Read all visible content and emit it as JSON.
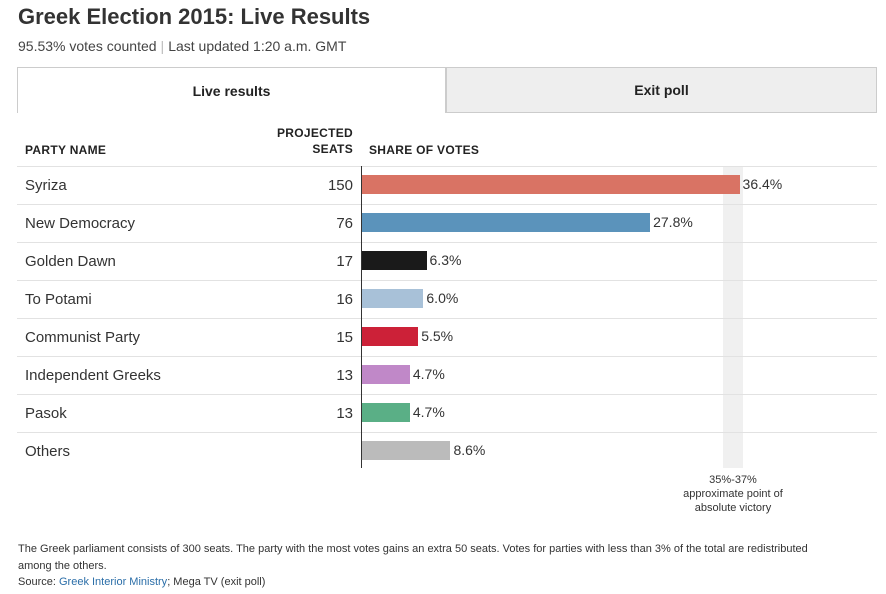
{
  "header": {
    "title": "Greek Election 2015: Live Results",
    "votes_counted": "95.53% votes counted",
    "separator": "|",
    "last_updated": "Last updated 1:20 a.m. GMT"
  },
  "tabs": [
    {
      "label": "Live results",
      "active": true
    },
    {
      "label": "Exit poll",
      "active": false
    }
  ],
  "table": {
    "col_party": "PARTY NAME",
    "col_seats_line1": "PROJECTED",
    "col_seats_line2": "SEATS",
    "col_share": "SHARE OF VOTES"
  },
  "chart_data": {
    "type": "bar",
    "orientation": "horizontal",
    "categories": [
      "Syriza",
      "New Democracy",
      "Golden Dawn",
      "To Potami",
      "Communist Party",
      "Independent Greeks",
      "Pasok",
      "Others"
    ],
    "seats": [
      "150",
      "76",
      "17",
      "16",
      "15",
      "13",
      "13",
      ""
    ],
    "values": [
      36.4,
      27.8,
      6.3,
      6.0,
      5.5,
      4.7,
      4.7,
      8.6
    ],
    "value_labels": [
      "36.4%",
      "27.8%",
      "6.3%",
      "6.0%",
      "5.5%",
      "4.7%",
      "4.7%",
      "8.6%"
    ],
    "colors": [
      "#d97364",
      "#5b93bb",
      "#1a1a1a",
      "#a8c1d8",
      "#cc2138",
      "#c088c8",
      "#5aaf86",
      "#bbbbbb"
    ],
    "xlim": [
      0,
      37
    ],
    "victory_range": [
      35,
      37
    ],
    "victory_label_1": "35%-37%",
    "victory_label_2": "approximate point of",
    "victory_label_3": "absolute victory"
  },
  "footer": {
    "note": "The Greek parliament consists of 300 seats. The party with the most votes gains an extra 50 seats. Votes for parties with less than 3% of the total are redistributed among the others.",
    "source_prefix": "Source:",
    "source_link": "Greek Interior Ministry",
    "source_rest": "; Mega TV (exit poll)"
  }
}
